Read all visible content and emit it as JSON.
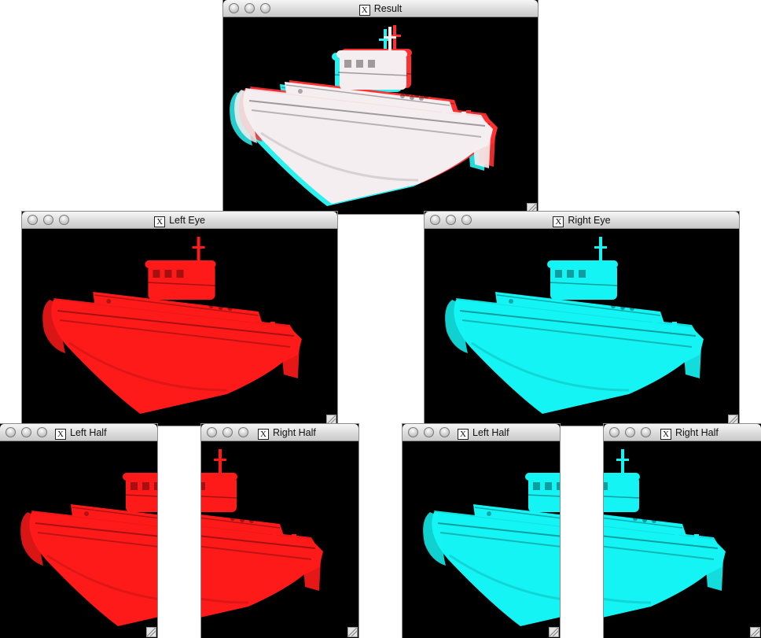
{
  "windows": {
    "result": {
      "title": "Result"
    },
    "left_eye": {
      "title": "Left Eye"
    },
    "right_eye": {
      "title": "Right Eye"
    },
    "left_red_half": {
      "title": "Left Half"
    },
    "right_red_half": {
      "title": "Right Half"
    },
    "left_cyan_half": {
      "title": "Left Half"
    },
    "right_cyan_half": {
      "title": "Right Half"
    }
  },
  "x_icon_label": "X",
  "colors": {
    "red_hull": "#ff1a1a",
    "cyan_hull": "#14f4f4",
    "result_hull": "#f4eef0",
    "background": "#000000"
  }
}
